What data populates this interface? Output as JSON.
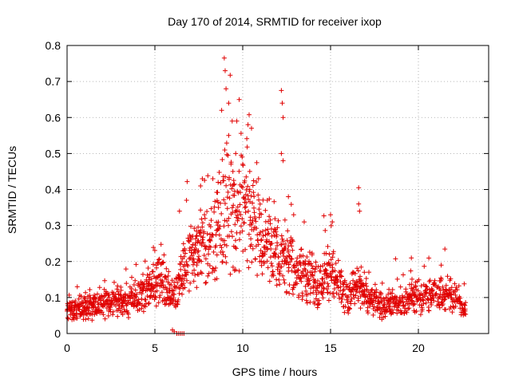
{
  "chart_data": {
    "type": "scatter",
    "title": "Day 170 of 2014, SRMTID for receiver ixop",
    "xlabel": "GPS time / hours",
    "ylabel": "SRMTID / TECUs",
    "xlim": [
      0,
      24
    ],
    "ylim": [
      0,
      0.8
    ],
    "xticks": [
      "0",
      "5",
      "10",
      "15",
      "20"
    ],
    "yticks": [
      "0",
      "0.1",
      "0.2",
      "0.3",
      "0.4",
      "0.5",
      "0.6",
      "0.7",
      "0.8"
    ],
    "grid": true,
    "marker": "+",
    "color": "#e00000",
    "time_range_hours": [
      0,
      22.7
    ],
    "sampling_step_hours": 0.02,
    "trend": [
      {
        "x": 0.0,
        "y": 0.065
      },
      {
        "x": 1.0,
        "y": 0.07
      },
      {
        "x": 2.0,
        "y": 0.08
      },
      {
        "x": 3.0,
        "y": 0.09
      },
      {
        "x": 4.0,
        "y": 0.1
      },
      {
        "x": 4.8,
        "y": 0.13
      },
      {
        "x": 5.3,
        "y": 0.15
      },
      {
        "x": 6.0,
        "y": 0.1
      },
      {
        "x": 6.6,
        "y": 0.17
      },
      {
        "x": 7.2,
        "y": 0.21
      },
      {
        "x": 8.0,
        "y": 0.25
      },
      {
        "x": 8.6,
        "y": 0.29
      },
      {
        "x": 9.0,
        "y": 0.33
      },
      {
        "x": 9.6,
        "y": 0.33
      },
      {
        "x": 10.2,
        "y": 0.36
      },
      {
        "x": 10.8,
        "y": 0.28
      },
      {
        "x": 11.4,
        "y": 0.24
      },
      {
        "x": 12.0,
        "y": 0.22
      },
      {
        "x": 12.6,
        "y": 0.2
      },
      {
        "x": 13.2,
        "y": 0.17
      },
      {
        "x": 13.8,
        "y": 0.15
      },
      {
        "x": 14.3,
        "y": 0.13
      },
      {
        "x": 14.9,
        "y": 0.17
      },
      {
        "x": 15.4,
        "y": 0.14
      },
      {
        "x": 16.0,
        "y": 0.1
      },
      {
        "x": 16.6,
        "y": 0.14
      },
      {
        "x": 17.2,
        "y": 0.09
      },
      {
        "x": 18.0,
        "y": 0.08
      },
      {
        "x": 19.0,
        "y": 0.09
      },
      {
        "x": 20.0,
        "y": 0.1
      },
      {
        "x": 21.0,
        "y": 0.11
      },
      {
        "x": 22.0,
        "y": 0.1
      },
      {
        "x": 22.7,
        "y": 0.07
      }
    ],
    "peaks": [
      {
        "x": 8.95,
        "y": 0.765
      },
      {
        "x": 9.0,
        "y": 0.73
      },
      {
        "x": 9.05,
        "y": 0.68
      },
      {
        "x": 9.2,
        "y": 0.64
      },
      {
        "x": 8.8,
        "y": 0.62
      },
      {
        "x": 9.4,
        "y": 0.59
      },
      {
        "x": 9.8,
        "y": 0.65
      },
      {
        "x": 10.3,
        "y": 0.58
      },
      {
        "x": 10.5,
        "y": 0.57
      },
      {
        "x": 12.2,
        "y": 0.675
      },
      {
        "x": 12.25,
        "y": 0.64
      },
      {
        "x": 12.3,
        "y": 0.6
      },
      {
        "x": 12.2,
        "y": 0.5
      },
      {
        "x": 12.3,
        "y": 0.48
      },
      {
        "x": 12.6,
        "y": 0.38
      },
      {
        "x": 16.6,
        "y": 0.405
      },
      {
        "x": 16.6,
        "y": 0.36
      },
      {
        "x": 16.65,
        "y": 0.34
      },
      {
        "x": 15.0,
        "y": 0.33
      },
      {
        "x": 15.1,
        "y": 0.31
      },
      {
        "x": 7.7,
        "y": 0.43
      },
      {
        "x": 7.6,
        "y": 0.41
      },
      {
        "x": 8.3,
        "y": 0.43
      },
      {
        "x": 8.6,
        "y": 0.42
      },
      {
        "x": 10.0,
        "y": 0.47
      },
      {
        "x": 10.4,
        "y": 0.45
      },
      {
        "x": 6.4,
        "y": 0.34
      },
      {
        "x": 6.8,
        "y": 0.37
      },
      {
        "x": 12.9,
        "y": 0.33
      },
      {
        "x": 13.5,
        "y": 0.31
      },
      {
        "x": 19.6,
        "y": 0.21
      },
      {
        "x": 21.3,
        "y": 0.19
      },
      {
        "x": 9.2,
        "y": 0.55
      },
      {
        "x": 9.6,
        "y": 0.5
      },
      {
        "x": 10.9,
        "y": 0.43
      },
      {
        "x": 11.4,
        "y": 0.37
      }
    ],
    "zero_points": [
      {
        "x": 6.25,
        "y": 0.0
      },
      {
        "x": 6.35,
        "y": 0.0
      },
      {
        "x": 6.45,
        "y": 0.0
      },
      {
        "x": 6.55,
        "y": 0.0
      },
      {
        "x": 6.65,
        "y": 0.0
      },
      {
        "x": 6.0,
        "y": 0.01
      },
      {
        "x": 6.1,
        "y": 0.005
      }
    ]
  }
}
